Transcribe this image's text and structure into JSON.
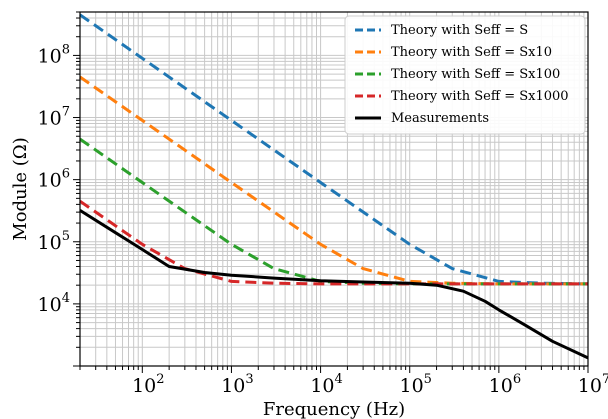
{
  "chart_data": {
    "type": "line",
    "xlabel": "Frequency (Hz)",
    "ylabel": "Module (Ω)",
    "xscale": "log",
    "yscale": "log",
    "xlim": [
      20,
      10000000
    ],
    "ylim": [
      1000,
      500000000
    ],
    "grid": true,
    "legend_position": "top-right",
    "x_ticks": [
      {
        "value": 100,
        "base": "10",
        "exp": "2"
      },
      {
        "value": 1000,
        "base": "10",
        "exp": "3"
      },
      {
        "value": 10000,
        "base": "10",
        "exp": "4"
      },
      {
        "value": 100000,
        "base": "10",
        "exp": "5"
      },
      {
        "value": 1000000,
        "base": "10",
        "exp": "6"
      },
      {
        "value": 10000000,
        "base": "10",
        "exp": "7"
      }
    ],
    "y_ticks": [
      {
        "value": 10000,
        "base": "10",
        "exp": "4"
      },
      {
        "value": 100000,
        "base": "10",
        "exp": "5"
      },
      {
        "value": 1000000,
        "base": "10",
        "exp": "6"
      },
      {
        "value": 10000000,
        "base": "10",
        "exp": "7"
      },
      {
        "value": 100000000,
        "base": "10",
        "exp": "8"
      }
    ],
    "series": [
      {
        "name": "Theory with Seff = S",
        "color": "#1f77b4",
        "style": "dashed",
        "x": [
          20,
          100,
          1000,
          10000,
          100000,
          300000,
          1000000,
          3000000,
          10000000
        ],
        "y": [
          450000000,
          90000000,
          9000000,
          900000,
          91000,
          37000,
          23000,
          21500,
          21000
        ]
      },
      {
        "name": "Theory with Seff = Sx10",
        "color": "#ff7f0e",
        "style": "dashed",
        "x": [
          20,
          100,
          1000,
          10000,
          30000,
          100000,
          300000,
          1000000,
          10000000
        ],
        "y": [
          45000000,
          9000000,
          900000,
          91000,
          37000,
          23000,
          21500,
          21000,
          21000
        ]
      },
      {
        "name": "Theory with Seff = Sx100",
        "color": "#2ca02c",
        "style": "dashed",
        "x": [
          20,
          100,
          1000,
          3000,
          10000,
          30000,
          100000,
          1000000,
          10000000
        ],
        "y": [
          4500000,
          900000,
          91000,
          37000,
          23000,
          21500,
          21000,
          21000,
          21000
        ]
      },
      {
        "name": "Theory with Seff = Sx1000",
        "color": "#d62728",
        "style": "dashed",
        "x": [
          20,
          100,
          300,
          1000,
          3000,
          10000,
          100000,
          1000000,
          10000000
        ],
        "y": [
          450000,
          91000,
          37000,
          23000,
          21500,
          21000,
          21000,
          21000,
          21000
        ]
      },
      {
        "name": "Measurements",
        "color": "#000000",
        "style": "solid",
        "x": [
          20,
          50,
          100,
          200,
          500,
          1000,
          3000,
          10000,
          30000,
          100000,
          200000,
          400000,
          700000,
          1000000,
          2000000,
          4000000,
          10000000
        ],
        "y": [
          320000,
          140000,
          75000,
          40000,
          32000,
          29000,
          26000,
          23500,
          22500,
          21500,
          20000,
          16000,
          11000,
          8000,
          4500,
          2500,
          1350
        ]
      }
    ]
  }
}
